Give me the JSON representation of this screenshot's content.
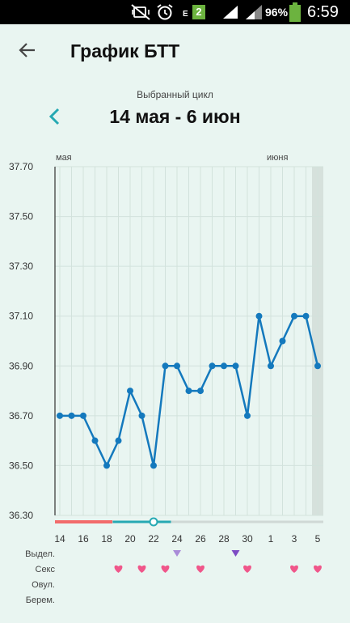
{
  "status_bar": {
    "network": "E",
    "sim": "2",
    "battery": "96%",
    "time": "6:59",
    "icons": [
      "mute-vibrate-icon",
      "alarm-icon",
      "signal-icon",
      "battery-icon"
    ]
  },
  "header": {
    "back_icon": "arrow-left-icon",
    "title": "График БТТ"
  },
  "cycle": {
    "label": "Выбранный цикл",
    "range": "14 мая - 6 июн",
    "prev_icon": "chevron-left-icon"
  },
  "colors": {
    "background": "#e9f5f1",
    "line": "#1479bd",
    "accent": "#26a9b3",
    "period_bar": "#f26b6b",
    "heart": "#f0568a",
    "grid": "#d2e2dc",
    "today_band": "#d6e1dc"
  },
  "chart_data": {
    "type": "line",
    "month_labels": [
      "мая",
      "июня"
    ],
    "x_tick_labels": [
      "14",
      "16",
      "18",
      "20",
      "22",
      "24",
      "26",
      "28",
      "30",
      "1",
      "3",
      "5"
    ],
    "x_days": [
      "14",
      "15",
      "16",
      "17",
      "18",
      "19",
      "20",
      "21",
      "22",
      "23",
      "24",
      "25",
      "26",
      "27",
      "28",
      "29",
      "30",
      "31",
      "1",
      "2",
      "3",
      "4",
      "5"
    ],
    "y_tick_labels": [
      "37.70",
      "37.50",
      "37.30",
      "37.10",
      "36.90",
      "36.70",
      "36.50",
      "36.30"
    ],
    "ylim": [
      36.3,
      37.7
    ],
    "grid": true,
    "series": [
      {
        "values": [
          36.7,
          36.7,
          36.7,
          36.6,
          36.5,
          36.6,
          36.8,
          36.7,
          36.5,
          36.9,
          36.9,
          36.8,
          36.8,
          36.9,
          36.9,
          36.9,
          36.7,
          37.1,
          36.9,
          37.0,
          37.1,
          37.1,
          36.9
        ]
      }
    ],
    "current_day_index": 22,
    "period_day_indices": [
      0,
      1,
      2,
      3,
      4
    ],
    "fertile_day_indices": [
      5,
      6,
      7,
      8,
      9
    ],
    "ovulation_day_index": 8,
    "row_labels": [
      "Выдел.",
      "Секс",
      "Овул.",
      "Берем."
    ],
    "discharge_day_indices": [
      10,
      15
    ],
    "sex_day_indices": [
      5,
      7,
      9,
      12,
      16,
      20,
      22
    ]
  }
}
